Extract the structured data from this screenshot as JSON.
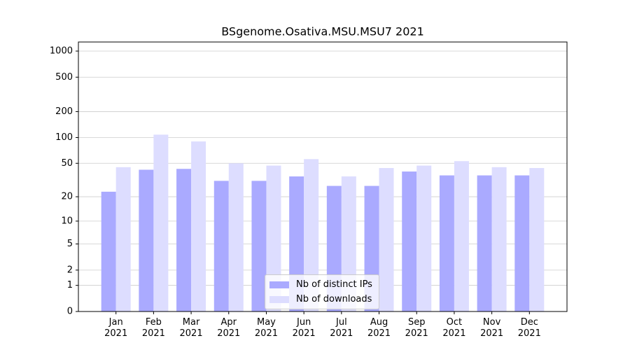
{
  "chart_data": {
    "type": "bar",
    "title": "BSgenome.Osativa.MSU.MSU7 2021",
    "categories": [
      "Jan\n2021",
      "Feb\n2021",
      "Mar\n2021",
      "Apr\n2021",
      "May\n2021",
      "Jun\n2021",
      "Jul\n2021",
      "Aug\n2021",
      "Sep\n2021",
      "Oct\n2021",
      "Nov\n2021",
      "Dec\n2021"
    ],
    "series": [
      {
        "name": "Nb of distinct IPs",
        "color": "#aaaaff",
        "values": [
          23,
          42,
          43,
          31,
          31,
          35,
          27,
          27,
          40,
          36,
          36,
          36
        ]
      },
      {
        "name": "Nb of downloads",
        "color": "#ddddff",
        "values": [
          45,
          108,
          90,
          50,
          47,
          56,
          35,
          44,
          47,
          53,
          45,
          44
        ]
      }
    ],
    "y_scale": "symlog",
    "ylim": [
      0,
      1273
    ],
    "yticks": [
      0,
      1,
      2,
      5,
      10,
      20,
      50,
      100,
      200,
      500,
      1000
    ],
    "grid": true,
    "legend": "lower center"
  }
}
